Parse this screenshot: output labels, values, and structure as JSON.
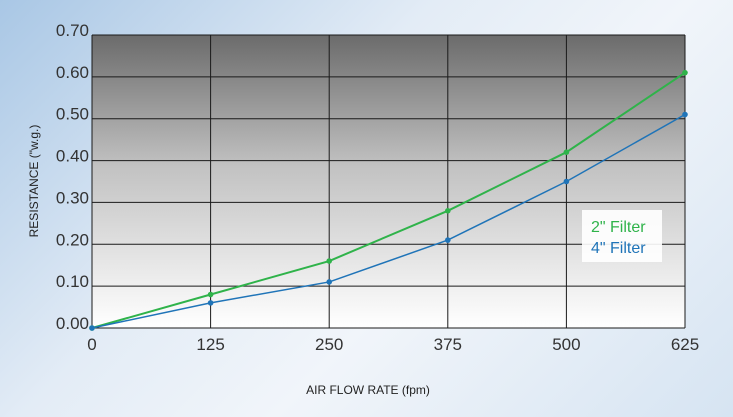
{
  "chart_data": {
    "type": "line",
    "title": "",
    "xlabel": "AIR FLOW RATE (fpm)",
    "ylabel": "RESISTANCE (\"w.g.)",
    "x": [
      0,
      125,
      250,
      375,
      500,
      625
    ],
    "x_tick_labels": [
      "0",
      "125",
      "250",
      "375",
      "500",
      "625"
    ],
    "y_tick_labels": [
      "0.00",
      "0.10",
      "0.20",
      "0.30",
      "0.40",
      "0.50",
      "0.60",
      "0.70"
    ],
    "xlim": [
      0,
      625
    ],
    "ylim": [
      0,
      0.7
    ],
    "grid": true,
    "legend_position": "right",
    "series": [
      {
        "name": "2\" Filter",
        "color": "#2fb34a",
        "values": [
          0.0,
          0.08,
          0.16,
          0.28,
          0.42,
          0.61
        ]
      },
      {
        "name": "4\" Filter",
        "color": "#1f74b8",
        "values": [
          0.0,
          0.06,
          0.11,
          0.21,
          0.35,
          0.51
        ]
      }
    ]
  }
}
